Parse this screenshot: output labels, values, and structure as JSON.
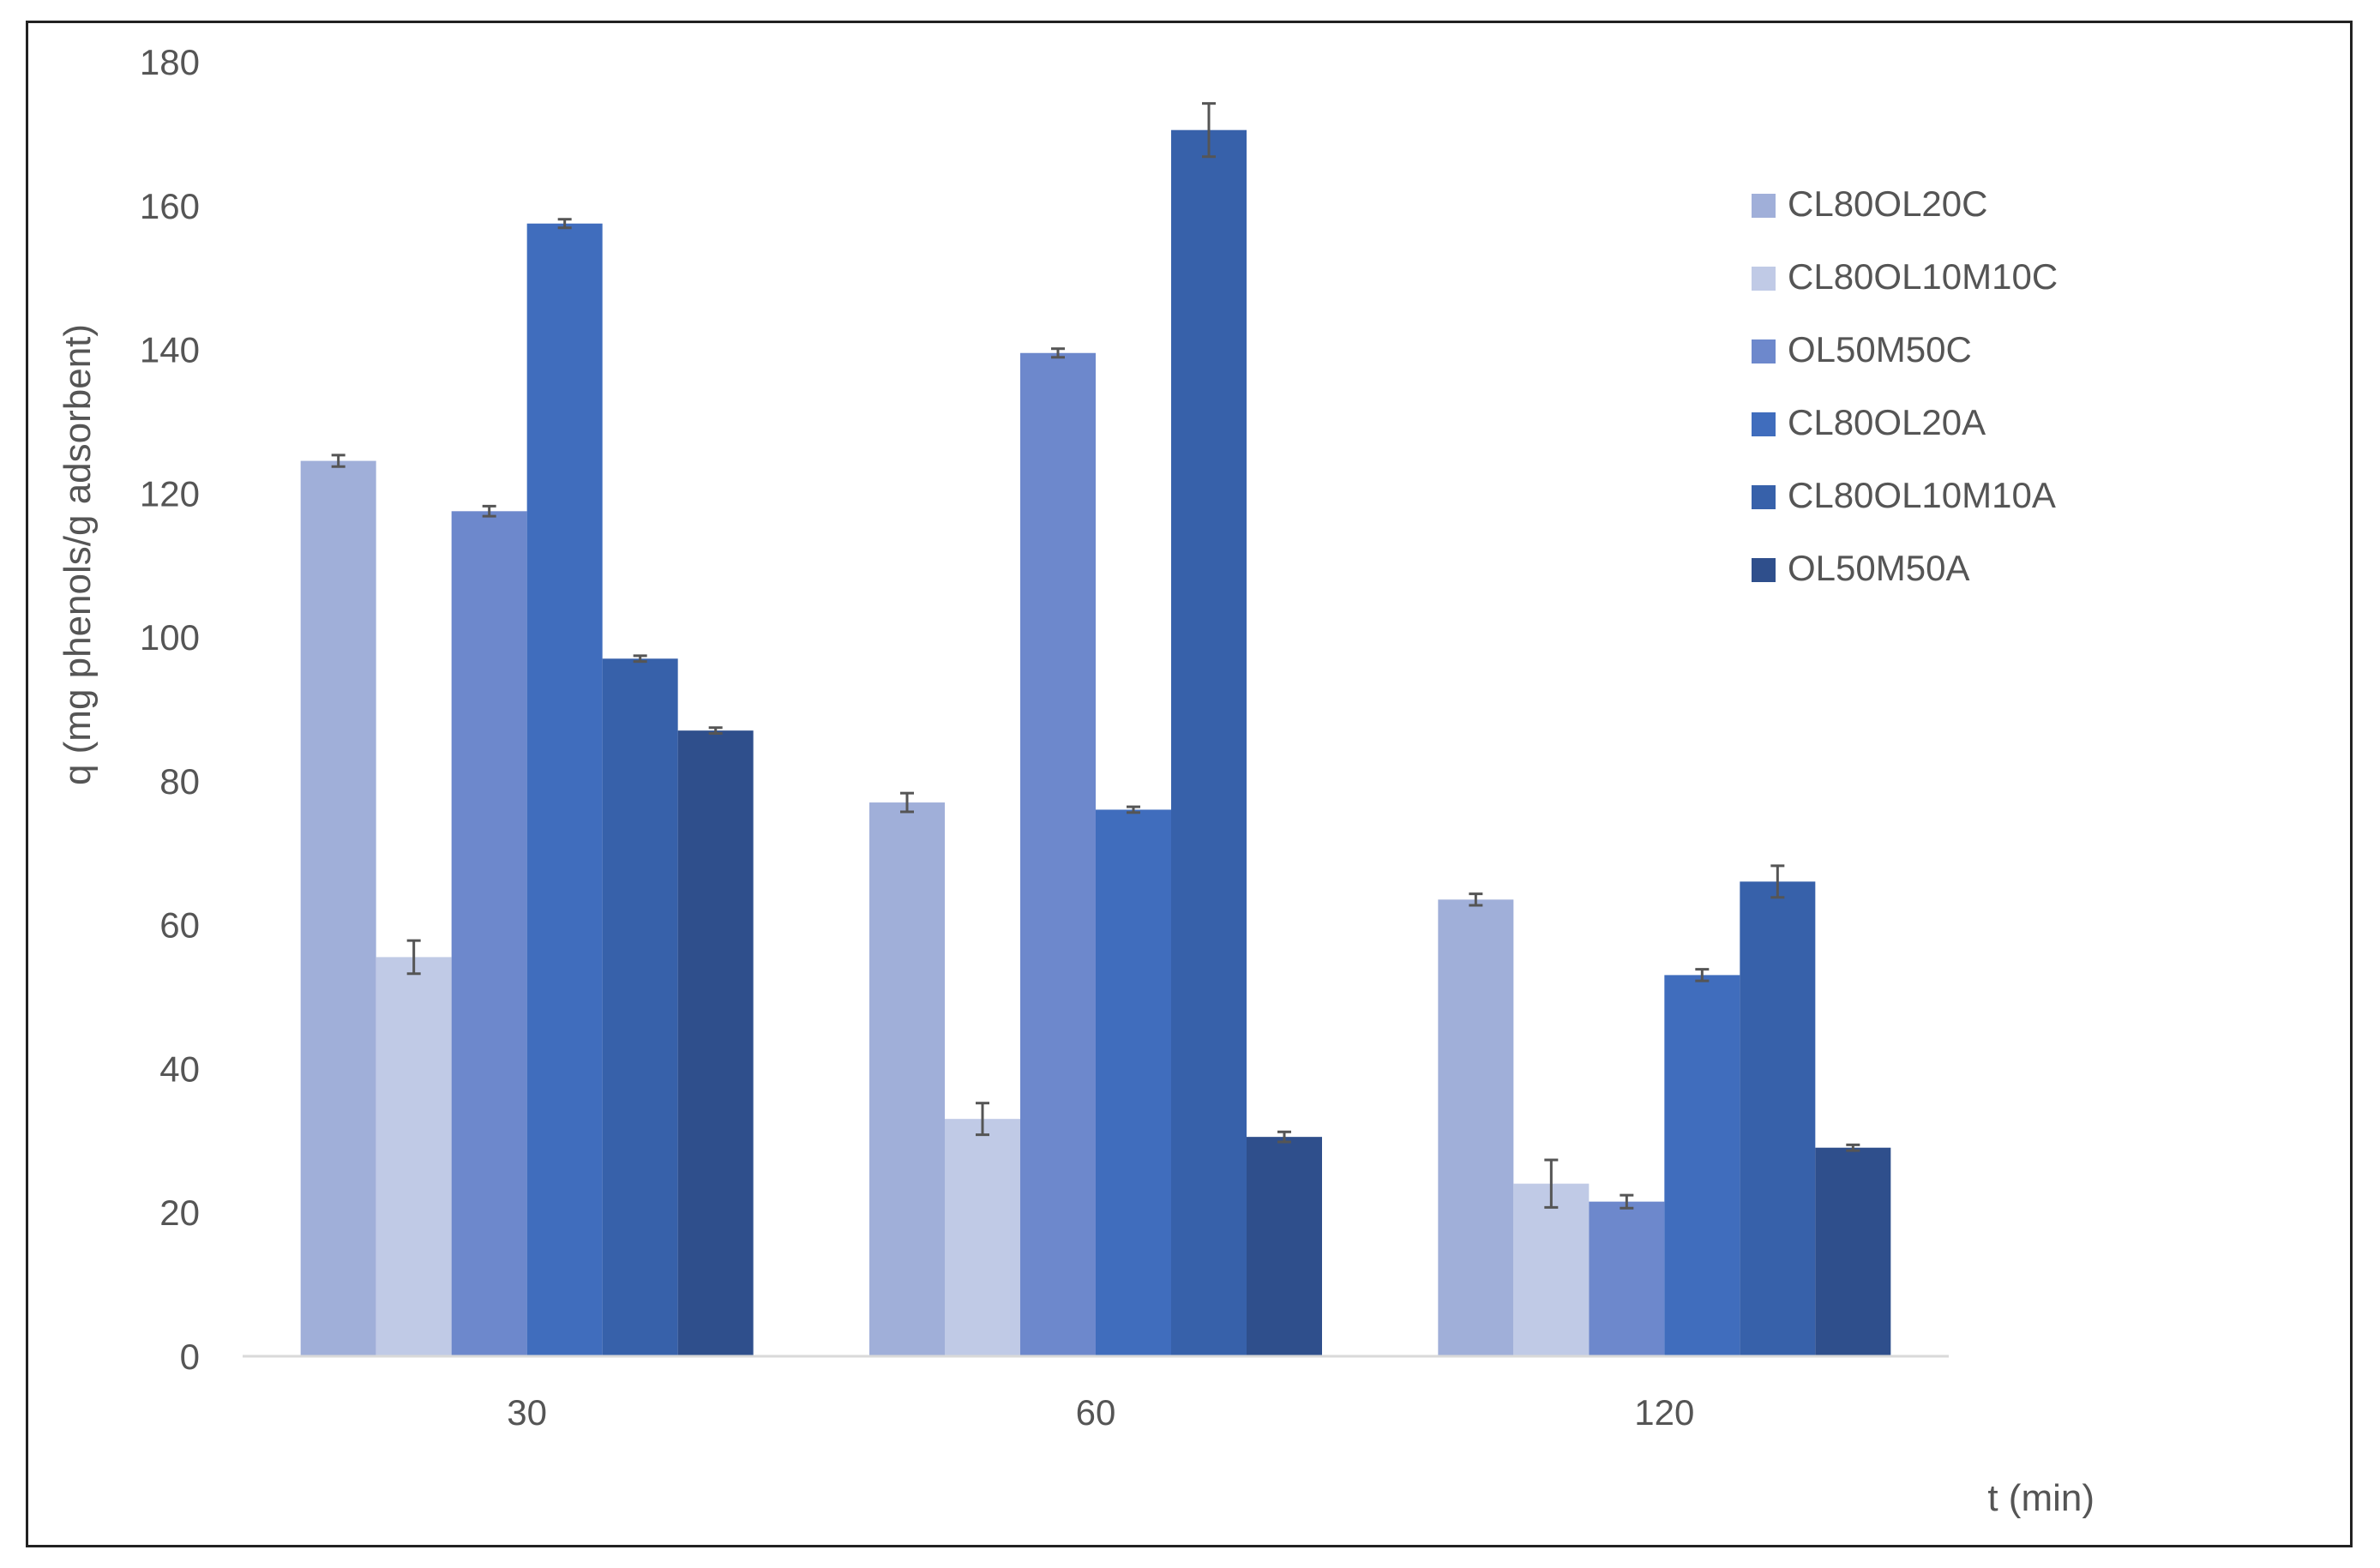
{
  "chart_data": {
    "type": "bar",
    "categories": [
      "30",
      "60",
      "120"
    ],
    "xlabel": "t (min)",
    "ylabel": "q (mg phenols/g adsorbent)",
    "ylim": [
      0,
      180
    ],
    "yticks": [
      0,
      20,
      40,
      60,
      80,
      100,
      120,
      140,
      160,
      180
    ],
    "grid": false,
    "legend_position": "right",
    "series": [
      {
        "name": "CL80OL20C",
        "color": "#a0afd9",
        "values": [
          124.5,
          77,
          63.5
        ],
        "errors": [
          0.8,
          1.3,
          0.8
        ]
      },
      {
        "name": "CL80OL10M10C",
        "color": "#c0cae6",
        "values": [
          55.5,
          33,
          24
        ],
        "errors": [
          2.3,
          2.2,
          3.3
        ]
      },
      {
        "name": "OL50M50C",
        "color": "#6d88cc",
        "values": [
          117.5,
          139.5,
          21.5
        ],
        "errors": [
          0.7,
          0.6,
          0.9
        ]
      },
      {
        "name": "CL80OL20A",
        "color": "#406dbd",
        "values": [
          157.5,
          76,
          53
        ],
        "errors": [
          0.6,
          0.4,
          0.8
        ]
      },
      {
        "name": "CL80OL10M10A",
        "color": "#3761aa",
        "values": [
          97,
          170.5,
          66
        ],
        "errors": [
          0.4,
          3.7,
          2.2
        ]
      },
      {
        "name": "OL50M50A",
        "color": "#2f4f8c",
        "values": [
          87,
          30.5,
          29
        ],
        "errors": [
          0.4,
          0.7,
          0.4
        ]
      }
    ]
  }
}
